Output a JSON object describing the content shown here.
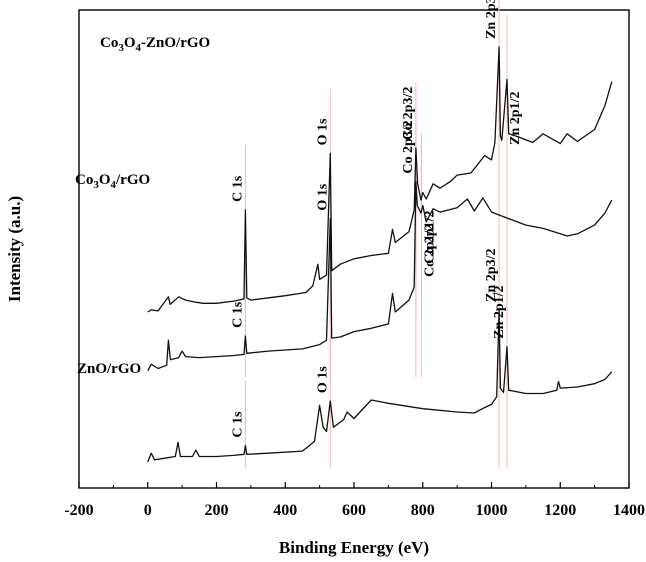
{
  "chart_data": {
    "type": "line",
    "xlabel": "Binding Energy (eV)",
    "ylabel": "Intensity (a.u.)",
    "xlim": [
      -200,
      1400
    ],
    "xticks": [
      "-200",
      "0",
      "200",
      "400",
      "600",
      "800",
      "1000",
      "1200",
      "1400"
    ],
    "y_ticks_shown": false,
    "grid": false,
    "legend": "none",
    "ref_line_color": "#f2b8b8",
    "panels": [
      {
        "name": "Co3O4-ZnO/rGO",
        "label_main": "Co",
        "label_parts": [
          {
            "t": "Co",
            "sub": false
          },
          {
            "t": "3",
            "sub": true
          },
          {
            "t": "O",
            "sub": false
          },
          {
            "t": "4",
            "sub": true
          },
          {
            "t": "-ZnO/rGO",
            "sub": false
          }
        ],
        "baseline": 14.2,
        "points": [
          [
            0,
            14.2
          ],
          [
            10,
            14.4
          ],
          [
            30,
            14.3
          ],
          [
            60,
            15.6
          ],
          [
            65,
            14.9
          ],
          [
            90,
            15.6
          ],
          [
            110,
            15.3
          ],
          [
            140,
            15.1
          ],
          [
            160,
            15.0
          ],
          [
            200,
            15.0
          ],
          [
            250,
            15.2
          ],
          [
            280,
            15.4
          ],
          [
            284,
            23.6
          ],
          [
            288,
            15.5
          ],
          [
            300,
            15.3
          ],
          [
            400,
            15.7
          ],
          [
            460,
            16.0
          ],
          [
            480,
            16.6
          ],
          [
            495,
            18.6
          ],
          [
            500,
            17.2
          ],
          [
            520,
            17.6
          ],
          [
            531,
            28.8
          ],
          [
            535,
            18.0
          ],
          [
            560,
            18.6
          ],
          [
            600,
            19.1
          ],
          [
            650,
            19.4
          ],
          [
            700,
            19.6
          ],
          [
            712,
            21.8
          ],
          [
            720,
            20.6
          ],
          [
            760,
            21.6
          ],
          [
            775,
            23.6
          ],
          [
            780,
            29.3
          ],
          [
            785,
            26.0
          ],
          [
            795,
            24.5
          ],
          [
            800,
            25.2
          ],
          [
            810,
            24.6
          ],
          [
            830,
            26.0
          ],
          [
            850,
            25.6
          ],
          [
            880,
            26.2
          ],
          [
            900,
            26.8
          ],
          [
            940,
            27.0
          ],
          [
            980,
            28.6
          ],
          [
            1000,
            28.2
          ],
          [
            1010,
            29.8
          ],
          [
            1022,
            38.6
          ],
          [
            1026,
            30.4
          ],
          [
            1030,
            30.0
          ],
          [
            1045,
            35.6
          ],
          [
            1050,
            30.6
          ],
          [
            1080,
            30.3
          ],
          [
            1120,
            29.8
          ],
          [
            1150,
            30.6
          ],
          [
            1200,
            29.7
          ],
          [
            1220,
            30.6
          ],
          [
            1250,
            29.9
          ],
          [
            1300,
            31.0
          ],
          [
            1330,
            33.2
          ],
          [
            1350,
            35.4
          ]
        ],
        "annotations": [
          {
            "text": "C 1s",
            "x": 284,
            "side": "above"
          },
          {
            "text": "O 1s",
            "x": 531,
            "side": "above"
          },
          {
            "text": "Co 2p3/2",
            "x": 780,
            "side": "above"
          },
          {
            "text": "Co 2p1/2",
            "x": 796,
            "side": "below"
          },
          {
            "text": "Zn 2p3/2",
            "x": 1022,
            "side": "above"
          },
          {
            "text": "Zn 2p1/2",
            "x": 1045,
            "side": "below"
          }
        ]
      },
      {
        "name": "Co3O4/rGO",
        "label_parts": [
          {
            "t": "Co",
            "sub": false
          },
          {
            "t": "3",
            "sub": true
          },
          {
            "t": "O",
            "sub": false
          },
          {
            "t": "4",
            "sub": true
          },
          {
            "t": "/rGO",
            "sub": false
          }
        ],
        "baseline": 8.8,
        "points": [
          [
            0,
            8.8
          ],
          [
            10,
            9.4
          ],
          [
            30,
            9.0
          ],
          [
            55,
            9.3
          ],
          [
            60,
            11.6
          ],
          [
            66,
            9.8
          ],
          [
            90,
            10.0
          ],
          [
            100,
            10.6
          ],
          [
            110,
            10.1
          ],
          [
            150,
            10.0
          ],
          [
            200,
            10.1
          ],
          [
            250,
            10.2
          ],
          [
            280,
            10.3
          ],
          [
            284,
            12.0
          ],
          [
            288,
            10.4
          ],
          [
            350,
            10.6
          ],
          [
            450,
            10.8
          ],
          [
            500,
            11.2
          ],
          [
            520,
            11.6
          ],
          [
            531,
            22.8
          ],
          [
            535,
            11.8
          ],
          [
            560,
            11.9
          ],
          [
            600,
            12.4
          ],
          [
            650,
            12.7
          ],
          [
            700,
            13.1
          ],
          [
            712,
            15.9
          ],
          [
            720,
            14.2
          ],
          [
            760,
            15.3
          ],
          [
            775,
            16.5
          ],
          [
            780,
            26.2
          ],
          [
            784,
            24.0
          ],
          [
            795,
            23.3
          ],
          [
            800,
            24.0
          ],
          [
            810,
            22.5
          ],
          [
            830,
            23.7
          ],
          [
            850,
            23.4
          ],
          [
            900,
            23.8
          ],
          [
            930,
            24.6
          ],
          [
            950,
            23.5
          ],
          [
            975,
            24.7
          ],
          [
            1000,
            23.4
          ],
          [
            1050,
            22.8
          ],
          [
            1100,
            22.2
          ],
          [
            1150,
            21.9
          ],
          [
            1200,
            21.4
          ],
          [
            1220,
            21.2
          ],
          [
            1250,
            21.4
          ],
          [
            1300,
            22.2
          ],
          [
            1330,
            23.3
          ],
          [
            1350,
            24.5
          ]
        ],
        "annotations": [
          {
            "text": "C 1s",
            "x": 284,
            "side": "above"
          },
          {
            "text": "O 1s",
            "x": 531,
            "side": "above"
          },
          {
            "text": "Co 2p3/2",
            "x": 780,
            "side": "above"
          },
          {
            "text": "Co 2p1/2",
            "x": 796,
            "side": "below"
          }
        ]
      },
      {
        "name": "ZnO/rGO",
        "label_parts": [
          {
            "t": "ZnO/rGO",
            "sub": false
          }
        ],
        "baseline": 0.4,
        "points": [
          [
            0,
            0.4
          ],
          [
            10,
            1.2
          ],
          [
            20,
            0.6
          ],
          [
            80,
            0.9
          ],
          [
            88,
            2.2
          ],
          [
            95,
            0.9
          ],
          [
            130,
            0.9
          ],
          [
            140,
            1.5
          ],
          [
            150,
            0.9
          ],
          [
            200,
            0.9
          ],
          [
            250,
            1.0
          ],
          [
            280,
            1.1
          ],
          [
            284,
            1.9
          ],
          [
            288,
            1.1
          ],
          [
            350,
            1.2
          ],
          [
            450,
            1.4
          ],
          [
            470,
            1.9
          ],
          [
            485,
            2.3
          ],
          [
            500,
            5.6
          ],
          [
            510,
            3.6
          ],
          [
            520,
            3.2
          ],
          [
            531,
            6.0
          ],
          [
            540,
            3.6
          ],
          [
            570,
            4.3
          ],
          [
            580,
            5.0
          ],
          [
            600,
            4.4
          ],
          [
            650,
            6.1
          ],
          [
            700,
            5.8
          ],
          [
            800,
            5.3
          ],
          [
            900,
            5.0
          ],
          [
            950,
            4.9
          ],
          [
            980,
            5.4
          ],
          [
            1000,
            5.7
          ],
          [
            1015,
            6.4
          ],
          [
            1022,
            14.4
          ],
          [
            1026,
            7.2
          ],
          [
            1035,
            6.8
          ],
          [
            1045,
            11.0
          ],
          [
            1050,
            7.0
          ],
          [
            1100,
            6.7
          ],
          [
            1150,
            6.7
          ],
          [
            1190,
            7.0
          ],
          [
            1195,
            7.8
          ],
          [
            1200,
            7.2
          ],
          [
            1250,
            7.3
          ],
          [
            1300,
            7.6
          ],
          [
            1330,
            8.0
          ],
          [
            1350,
            8.7
          ]
        ],
        "annotations": [
          {
            "text": "C 1s",
            "x": 284,
            "side": "above"
          },
          {
            "text": "O 1s",
            "x": 531,
            "side": "above"
          },
          {
            "text": "Zn 2p3/2",
            "x": 1022,
            "side": "above"
          },
          {
            "text": "Zn 2p1/2",
            "x": 1045,
            "side": "above"
          }
        ]
      }
    ]
  }
}
